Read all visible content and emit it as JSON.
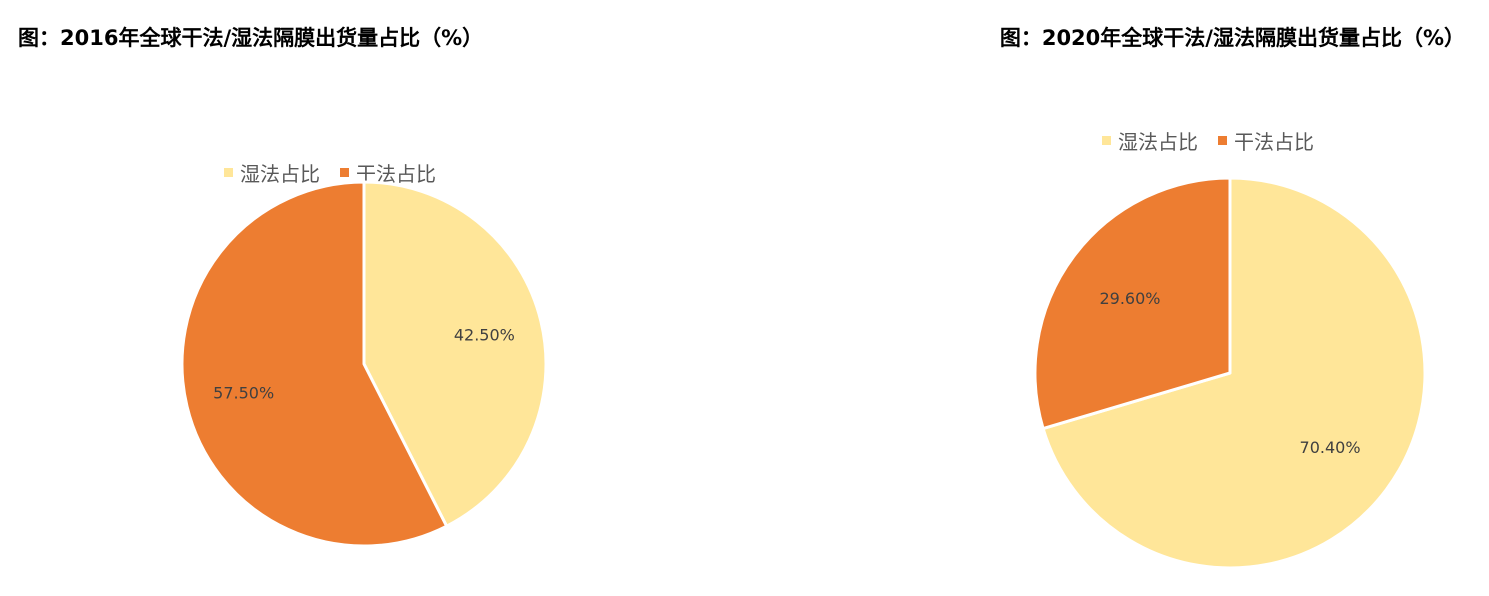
{
  "charts": [
    {
      "title": "图：2016年全球干法/湿法隔膜出货量占比（%）",
      "legend": [
        {
          "label": "湿法占比",
          "color": "#FFE699"
        },
        {
          "label": "干法占比",
          "color": "#ED7D31"
        }
      ]
    },
    {
      "title": "图：2020年全球干法/湿法隔膜出货量占比（%）",
      "legend": [
        {
          "label": "湿法占比",
          "color": "#FFE699"
        },
        {
          "label": "干法占比",
          "color": "#ED7D31"
        }
      ]
    }
  ],
  "chart_data": [
    {
      "type": "pie",
      "title": "图：2016年全球干法/湿法隔膜出货量占比（%）",
      "categories": [
        "湿法占比",
        "干法占比"
      ],
      "values": [
        42.5,
        57.5
      ],
      "data_labels": [
        "42.50%",
        "57.50%"
      ],
      "colors": [
        "#FFE699",
        "#ED7D31"
      ],
      "legend_position": "top"
    },
    {
      "type": "pie",
      "title": "图：2020年全球干法/湿法隔膜出货量占比（%）",
      "categories": [
        "湿法占比",
        "干法占比"
      ],
      "values": [
        70.4,
        29.6
      ],
      "data_labels": [
        "70.40%",
        "29.60%"
      ],
      "colors": [
        "#FFE699",
        "#ED7D31"
      ],
      "legend_position": "top"
    }
  ]
}
